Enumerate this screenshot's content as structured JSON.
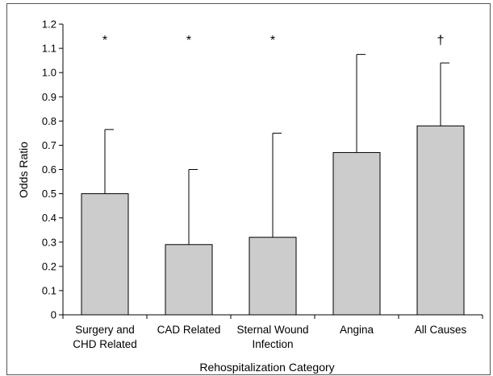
{
  "chart_data": {
    "type": "bar",
    "title": "",
    "xlabel": "Rehospitalization Category",
    "ylabel": "Odds Ratio",
    "ylim": [
      0,
      1.2
    ],
    "yticks": [
      "0",
      "0.1",
      "0.2",
      "0.3",
      "0.4",
      "0.5",
      "0.6",
      "0.7",
      "0.8",
      "0.9",
      "1.0",
      "1.1",
      "1.2"
    ],
    "categories": [
      [
        "Surgery and",
        "CHD Related"
      ],
      [
        "CAD Related"
      ],
      [
        "Sternal Wound",
        "Infection"
      ],
      [
        "Angina"
      ],
      [
        "All Causes"
      ]
    ],
    "values": [
      0.5,
      0.29,
      0.32,
      0.67,
      0.78
    ],
    "error_upper": [
      0.765,
      0.6,
      0.75,
      1.075,
      1.04
    ],
    "markers": [
      "*",
      "*",
      "*",
      "",
      "†"
    ],
    "grid": false,
    "colors": {
      "bar_fill": "#cccccc",
      "bar_stroke": "#000000",
      "axis": "#000000"
    }
  }
}
